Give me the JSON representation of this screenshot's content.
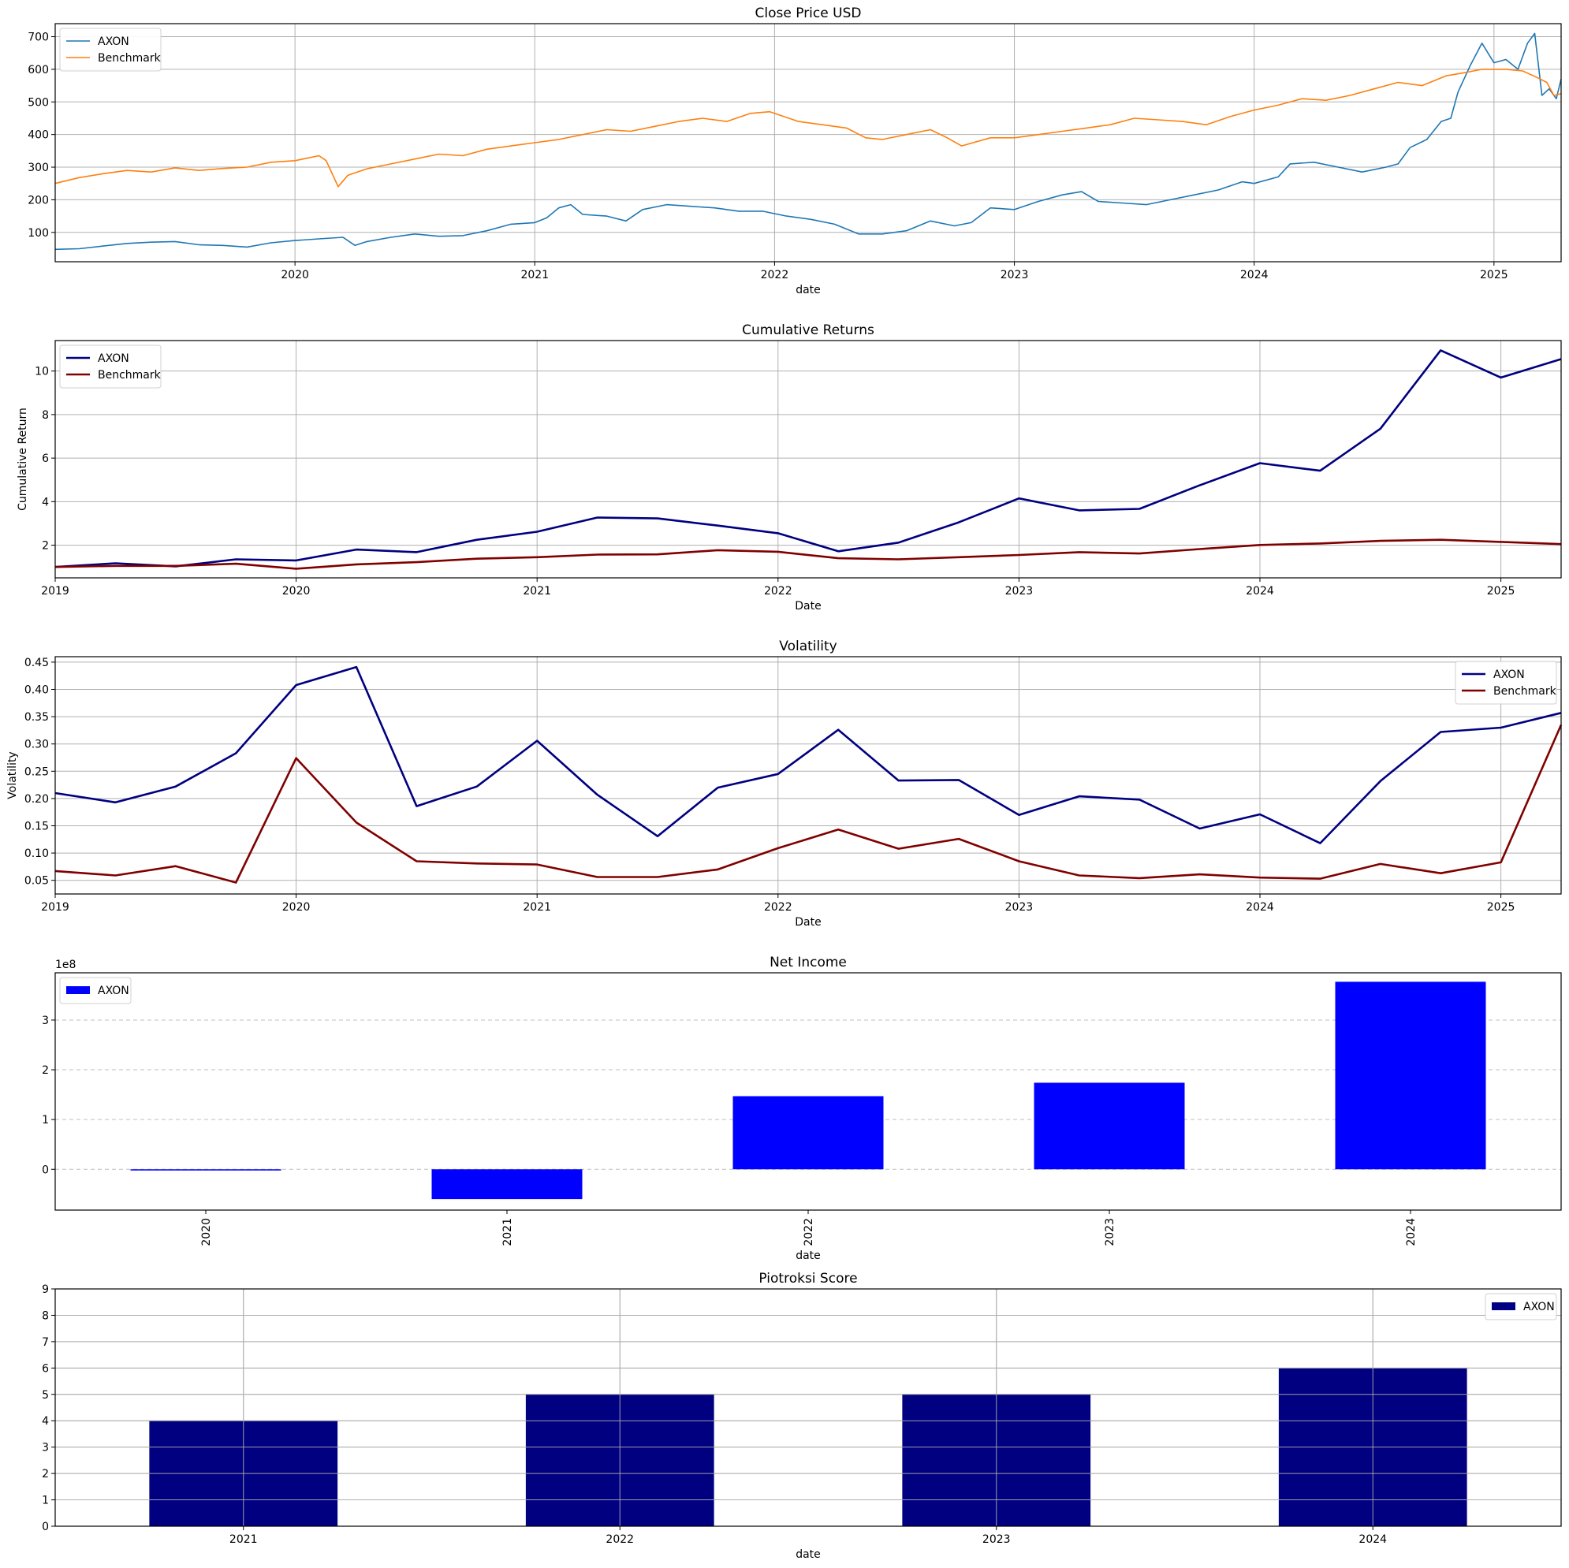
{
  "chart_data": [
    {
      "type": "line",
      "title": "Close Price USD",
      "xlabel": "date",
      "ylabel": "",
      "xlim": [
        2019.0,
        2025.28
      ],
      "ylim": [
        10,
        740
      ],
      "xticks": [
        2020,
        2021,
        2022,
        2023,
        2024,
        2025
      ],
      "yticks": [
        100,
        200,
        300,
        400,
        500,
        600,
        700
      ],
      "grid": "both",
      "legend": "upper-left",
      "series": [
        {
          "name": "AXON",
          "color": "#1f77b4",
          "x": [
            2019.0,
            2019.1,
            2019.2,
            2019.3,
            2019.4,
            2019.5,
            2019.6,
            2019.7,
            2019.8,
            2019.9,
            2020.0,
            2020.1,
            2020.2,
            2020.25,
            2020.3,
            2020.4,
            2020.5,
            2020.6,
            2020.7,
            2020.8,
            2020.9,
            2021.0,
            2021.05,
            2021.1,
            2021.15,
            2021.2,
            2021.3,
            2021.38,
            2021.45,
            2021.55,
            2021.65,
            2021.75,
            2021.85,
            2021.95,
            2022.05,
            2022.15,
            2022.25,
            2022.35,
            2022.45,
            2022.55,
            2022.65,
            2022.75,
            2022.82,
            2022.9,
            2023.0,
            2023.1,
            2023.2,
            2023.28,
            2023.35,
            2023.45,
            2023.55,
            2023.65,
            2023.75,
            2023.85,
            2023.95,
            2024.0,
            2024.1,
            2024.15,
            2024.25,
            2024.35,
            2024.45,
            2024.55,
            2024.6,
            2024.65,
            2024.72,
            2024.78,
            2024.82,
            2024.85,
            2024.9,
            2024.95,
            2025.0,
            2025.05,
            2025.1,
            2025.14,
            2025.17,
            2025.2,
            2025.23,
            2025.26,
            2025.28
          ],
          "y": [
            48,
            50,
            58,
            66,
            70,
            72,
            62,
            60,
            55,
            68,
            75,
            80,
            85,
            60,
            72,
            85,
            95,
            88,
            90,
            105,
            125,
            130,
            145,
            175,
            185,
            155,
            150,
            135,
            170,
            185,
            180,
            175,
            165,
            165,
            150,
            140,
            125,
            95,
            95,
            105,
            135,
            120,
            130,
            175,
            170,
            195,
            215,
            225,
            195,
            190,
            185,
            200,
            215,
            230,
            255,
            250,
            270,
            310,
            315,
            300,
            285,
            300,
            310,
            360,
            385,
            440,
            450,
            530,
            610,
            680,
            620,
            630,
            600,
            680,
            710,
            520,
            540,
            510,
            570
          ]
        },
        {
          "name": "Benchmark",
          "color": "#ff7f0e",
          "x": [
            2019.0,
            2019.1,
            2019.2,
            2019.3,
            2019.4,
            2019.5,
            2019.6,
            2019.7,
            2019.8,
            2019.9,
            2020.0,
            2020.1,
            2020.13,
            2020.18,
            2020.22,
            2020.3,
            2020.4,
            2020.5,
            2020.6,
            2020.7,
            2020.8,
            2020.9,
            2021.0,
            2021.1,
            2021.2,
            2021.3,
            2021.4,
            2021.5,
            2021.6,
            2021.7,
            2021.8,
            2021.9,
            2021.98,
            2022.1,
            2022.2,
            2022.3,
            2022.38,
            2022.45,
            2022.55,
            2022.65,
            2022.72,
            2022.78,
            2022.9,
            2023.0,
            2023.1,
            2023.2,
            2023.3,
            2023.4,
            2023.5,
            2023.6,
            2023.7,
            2023.8,
            2023.9,
            2024.0,
            2024.1,
            2024.2,
            2024.3,
            2024.4,
            2024.5,
            2024.6,
            2024.7,
            2024.8,
            2024.88,
            2024.95,
            2025.05,
            2025.12,
            2025.18,
            2025.22,
            2025.25,
            2025.28
          ],
          "y": [
            250,
            268,
            280,
            290,
            285,
            298,
            290,
            296,
            300,
            315,
            320,
            335,
            320,
            240,
            275,
            295,
            310,
            325,
            340,
            335,
            355,
            365,
            375,
            385,
            400,
            415,
            410,
            425,
            440,
            450,
            440,
            465,
            470,
            440,
            430,
            420,
            390,
            385,
            400,
            415,
            390,
            365,
            390,
            390,
            400,
            410,
            420,
            430,
            450,
            445,
            440,
            430,
            455,
            475,
            490,
            510,
            505,
            520,
            540,
            560,
            550,
            580,
            590,
            600,
            600,
            595,
            575,
            560,
            520,
            525
          ]
        }
      ]
    },
    {
      "type": "line",
      "title": "Cumulative Returns",
      "xlabel": "Date",
      "ylabel": "Cumulative Return",
      "xlim": [
        2019.0,
        2025.25
      ],
      "ylim": [
        0.5,
        11.4
      ],
      "xticks": [
        2019,
        2020,
        2021,
        2022,
        2023,
        2024,
        2025
      ],
      "yticks": [
        2,
        4,
        6,
        8,
        10
      ],
      "grid": "both",
      "legend": "upper-left",
      "series": [
        {
          "name": "AXON",
          "color": "#000080",
          "x": [
            2019.0,
            2019.25,
            2019.5,
            2019.75,
            2020.0,
            2020.25,
            2020.5,
            2020.75,
            2021.0,
            2021.25,
            2021.5,
            2021.75,
            2022.0,
            2022.25,
            2022.5,
            2022.75,
            2023.0,
            2023.25,
            2023.5,
            2023.75,
            2024.0,
            2024.25,
            2024.5,
            2024.75,
            2025.0,
            2025.25
          ],
          "y": [
            1.0,
            1.17,
            1.03,
            1.35,
            1.3,
            1.8,
            1.68,
            2.25,
            2.62,
            3.27,
            3.23,
            2.9,
            2.55,
            1.72,
            2.12,
            3.05,
            4.15,
            3.6,
            3.67,
            4.75,
            5.77,
            5.42,
            7.35,
            10.95,
            9.7,
            10.55
          ]
        },
        {
          "name": "Benchmark",
          "color": "#800000",
          "x": [
            2019.0,
            2019.25,
            2019.5,
            2019.75,
            2020.0,
            2020.25,
            2020.5,
            2020.75,
            2021.0,
            2021.25,
            2021.5,
            2021.75,
            2022.0,
            2022.25,
            2022.5,
            2022.75,
            2023.0,
            2023.25,
            2023.5,
            2023.75,
            2024.0,
            2024.25,
            2024.5,
            2024.75,
            2025.0,
            2025.25
          ],
          "y": [
            1.0,
            1.05,
            1.05,
            1.15,
            0.92,
            1.12,
            1.22,
            1.38,
            1.45,
            1.57,
            1.58,
            1.77,
            1.7,
            1.4,
            1.35,
            1.45,
            1.55,
            1.68,
            1.62,
            1.82,
            2.01,
            2.08,
            2.2,
            2.25,
            2.15,
            2.05
          ]
        }
      ]
    },
    {
      "type": "line",
      "title": "Volatility",
      "xlabel": "Date",
      "ylabel": "Volatility",
      "xlim": [
        2019.0,
        2025.25
      ],
      "ylim": [
        0.025,
        0.46
      ],
      "xticks": [
        2019,
        2020,
        2021,
        2022,
        2023,
        2024,
        2025
      ],
      "yticks": [
        0.05,
        0.1,
        0.15,
        0.2,
        0.25,
        0.3,
        0.35,
        0.4,
        0.45
      ],
      "grid": "both",
      "legend": "upper-right",
      "series": [
        {
          "name": "AXON",
          "color": "#000080",
          "x": [
            2019.0,
            2019.25,
            2019.5,
            2019.75,
            2020.0,
            2020.25,
            2020.5,
            2020.75,
            2021.0,
            2021.25,
            2021.5,
            2021.75,
            2022.0,
            2022.25,
            2022.5,
            2022.75,
            2023.0,
            2023.25,
            2023.5,
            2023.75,
            2024.0,
            2024.25,
            2024.5,
            2024.75,
            2025.0,
            2025.25
          ],
          "y": [
            0.21,
            0.193,
            0.222,
            0.283,
            0.408,
            0.441,
            0.186,
            0.222,
            0.306,
            0.207,
            0.131,
            0.22,
            0.245,
            0.326,
            0.233,
            0.234,
            0.17,
            0.204,
            0.198,
            0.145,
            0.171,
            0.118,
            0.232,
            0.322,
            0.33,
            0.357
          ]
        },
        {
          "name": "Benchmark",
          "color": "#800000",
          "x": [
            2019.0,
            2019.25,
            2019.5,
            2019.75,
            2020.0,
            2020.25,
            2020.5,
            2020.75,
            2021.0,
            2021.25,
            2021.5,
            2021.75,
            2022.0,
            2022.25,
            2022.5,
            2022.75,
            2023.0,
            2023.25,
            2023.5,
            2023.75,
            2024.0,
            2024.25,
            2024.5,
            2024.75,
            2025.0,
            2025.25
          ],
          "y": [
            0.067,
            0.059,
            0.076,
            0.046,
            0.274,
            0.156,
            0.085,
            0.081,
            0.079,
            0.056,
            0.056,
            0.07,
            0.109,
            0.143,
            0.108,
            0.126,
            0.085,
            0.059,
            0.054,
            0.061,
            0.055,
            0.053,
            0.08,
            0.063,
            0.083,
            0.335
          ]
        }
      ]
    },
    {
      "type": "bar",
      "title": "Net Income",
      "xlabel": "date",
      "ylabel": "",
      "offset_label": "1e8",
      "categories": [
        "2020",
        "2021",
        "2022",
        "2023",
        "2024"
      ],
      "ylim": [
        -0.82,
        3.95
      ],
      "yticks": [
        0,
        1,
        2,
        3
      ],
      "grid": "y-dashed",
      "legend": "upper-left",
      "tick_rotation": 90,
      "series": [
        {
          "name": "AXON",
          "color": "#0000ff",
          "values": [
            -0.02,
            -0.6,
            1.47,
            1.74,
            3.77
          ]
        }
      ]
    },
    {
      "type": "bar",
      "title": "Piotroksi Score",
      "xlabel": "date",
      "ylabel": "",
      "categories": [
        "2021",
        "2022",
        "2023",
        "2024"
      ],
      "ylim": [
        0,
        9
      ],
      "yticks": [
        0,
        1,
        2,
        3,
        4,
        5,
        6,
        7,
        8,
        9
      ],
      "grid": "both",
      "legend": "upper-right",
      "series": [
        {
          "name": "AXON",
          "color": "#000080",
          "values": [
            4,
            5,
            5,
            6
          ]
        }
      ]
    }
  ]
}
